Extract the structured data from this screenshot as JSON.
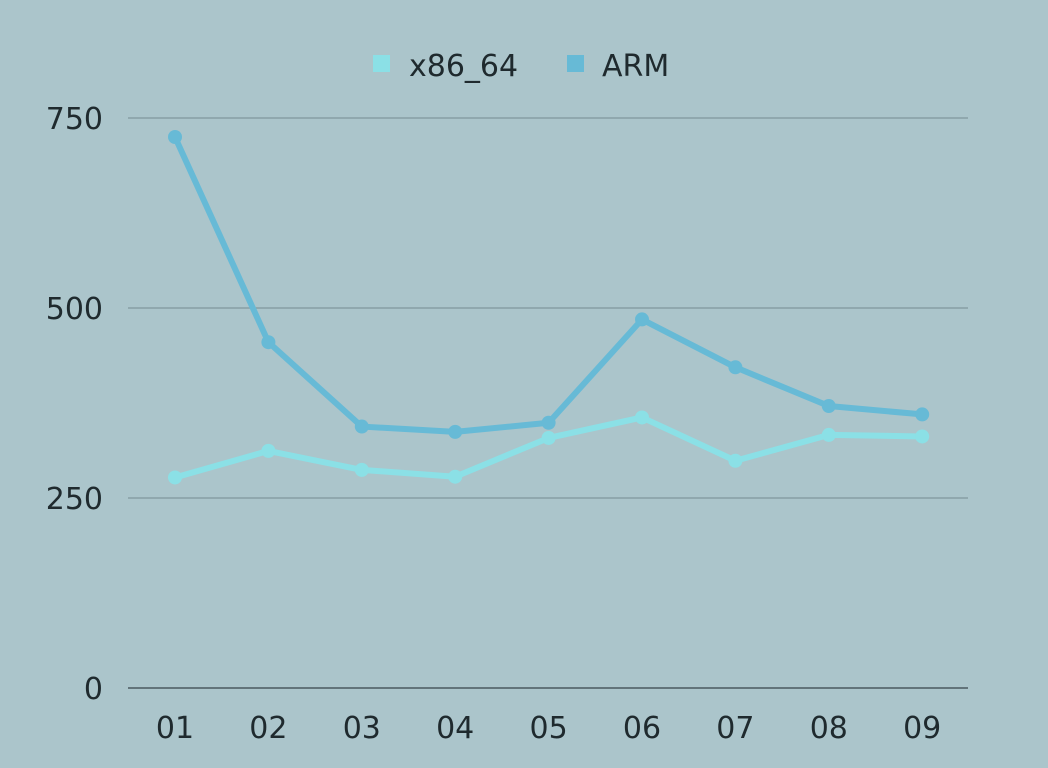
{
  "chart_data": {
    "type": "line",
    "title": "",
    "xlabel": "",
    "ylabel": "",
    "categories": [
      "01",
      "02",
      "03",
      "04",
      "05",
      "06",
      "07",
      "08",
      "09"
    ],
    "ylim": [
      0,
      750
    ],
    "yticks": [
      0,
      250,
      500,
      750
    ],
    "grid": true,
    "legend_position": "top-center",
    "series": [
      {
        "name": "x86_64",
        "color": "#8be0e6",
        "values": [
          277,
          312,
          287,
          278,
          329,
          356,
          299,
          333,
          331
        ]
      },
      {
        "name": "ARM",
        "color": "#67bad6",
        "values": [
          725,
          455,
          344,
          337,
          349,
          485,
          422,
          371,
          360
        ]
      }
    ]
  }
}
